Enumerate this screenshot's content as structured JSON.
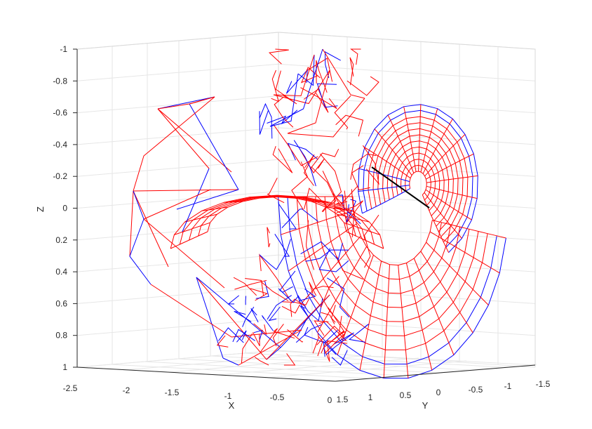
{
  "chart_data": {
    "type": "3d-wireframe",
    "title": "",
    "xlabel": "X",
    "ylabel": "Y",
    "zlabel": "Z",
    "z_direction": "reversed",
    "grid": true,
    "xlim": [
      -2.5,
      0
    ],
    "ylim": [
      -1.5,
      1.5
    ],
    "zlim": [
      -1,
      1
    ],
    "x_ticks": [
      "-2.5",
      "-2",
      "-1.5",
      "-1",
      "-0.5",
      "0"
    ],
    "y_ticks": [
      "1.5",
      "1",
      "0.5",
      "0",
      "-0.5",
      "-1",
      "-1.5"
    ],
    "z_ticks": [
      "-1",
      "-0.8",
      "-0.6",
      "-0.4",
      "-0.2",
      "0",
      "0.2",
      "0.4",
      "0.6",
      "0.8",
      "1"
    ],
    "series": [
      {
        "color": "#ff0000"
      },
      {
        "color": "#0000ff"
      },
      {
        "color": "#000000"
      }
    ]
  }
}
